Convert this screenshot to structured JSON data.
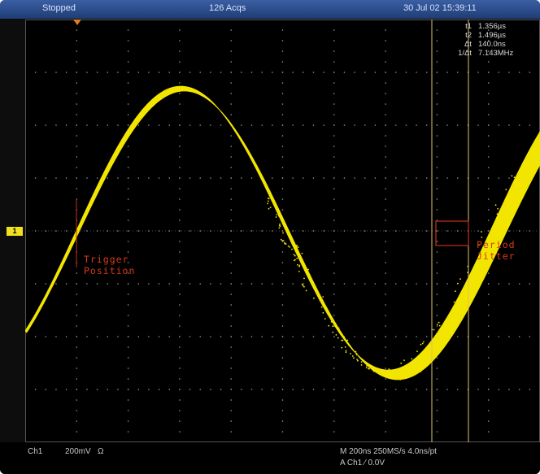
{
  "header": {
    "status": "Stopped",
    "acquisitions": "126 Acqs",
    "datetime": "30 Jul 02 15:39:11"
  },
  "readout": [
    {
      "label": "t1",
      "value": "1.356µs"
    },
    {
      "label": "t2",
      "value": "1.496µs"
    },
    {
      "label": "Δt",
      "value": "140.0ns"
    },
    {
      "label": "1/Δt",
      "value": "7.143MHz"
    }
  ],
  "annotations": {
    "trigger": [
      "Trigger",
      "Position"
    ],
    "jitter": [
      "Period",
      "Jitter"
    ]
  },
  "footer": {
    "channel": "Ch1",
    "scale": "200mV",
    "impedance": "Ω",
    "horizontal": "M 200ns 250MS/s  4.0ns/pt",
    "trigger": "A  Ch1  ⁄  0.0V"
  },
  "channel_marker": "1",
  "colors": {
    "trace": "#f2e600",
    "annotation": "#d63a1a",
    "header": "#2a4e8e",
    "grid": "#9a9a9a"
  }
}
